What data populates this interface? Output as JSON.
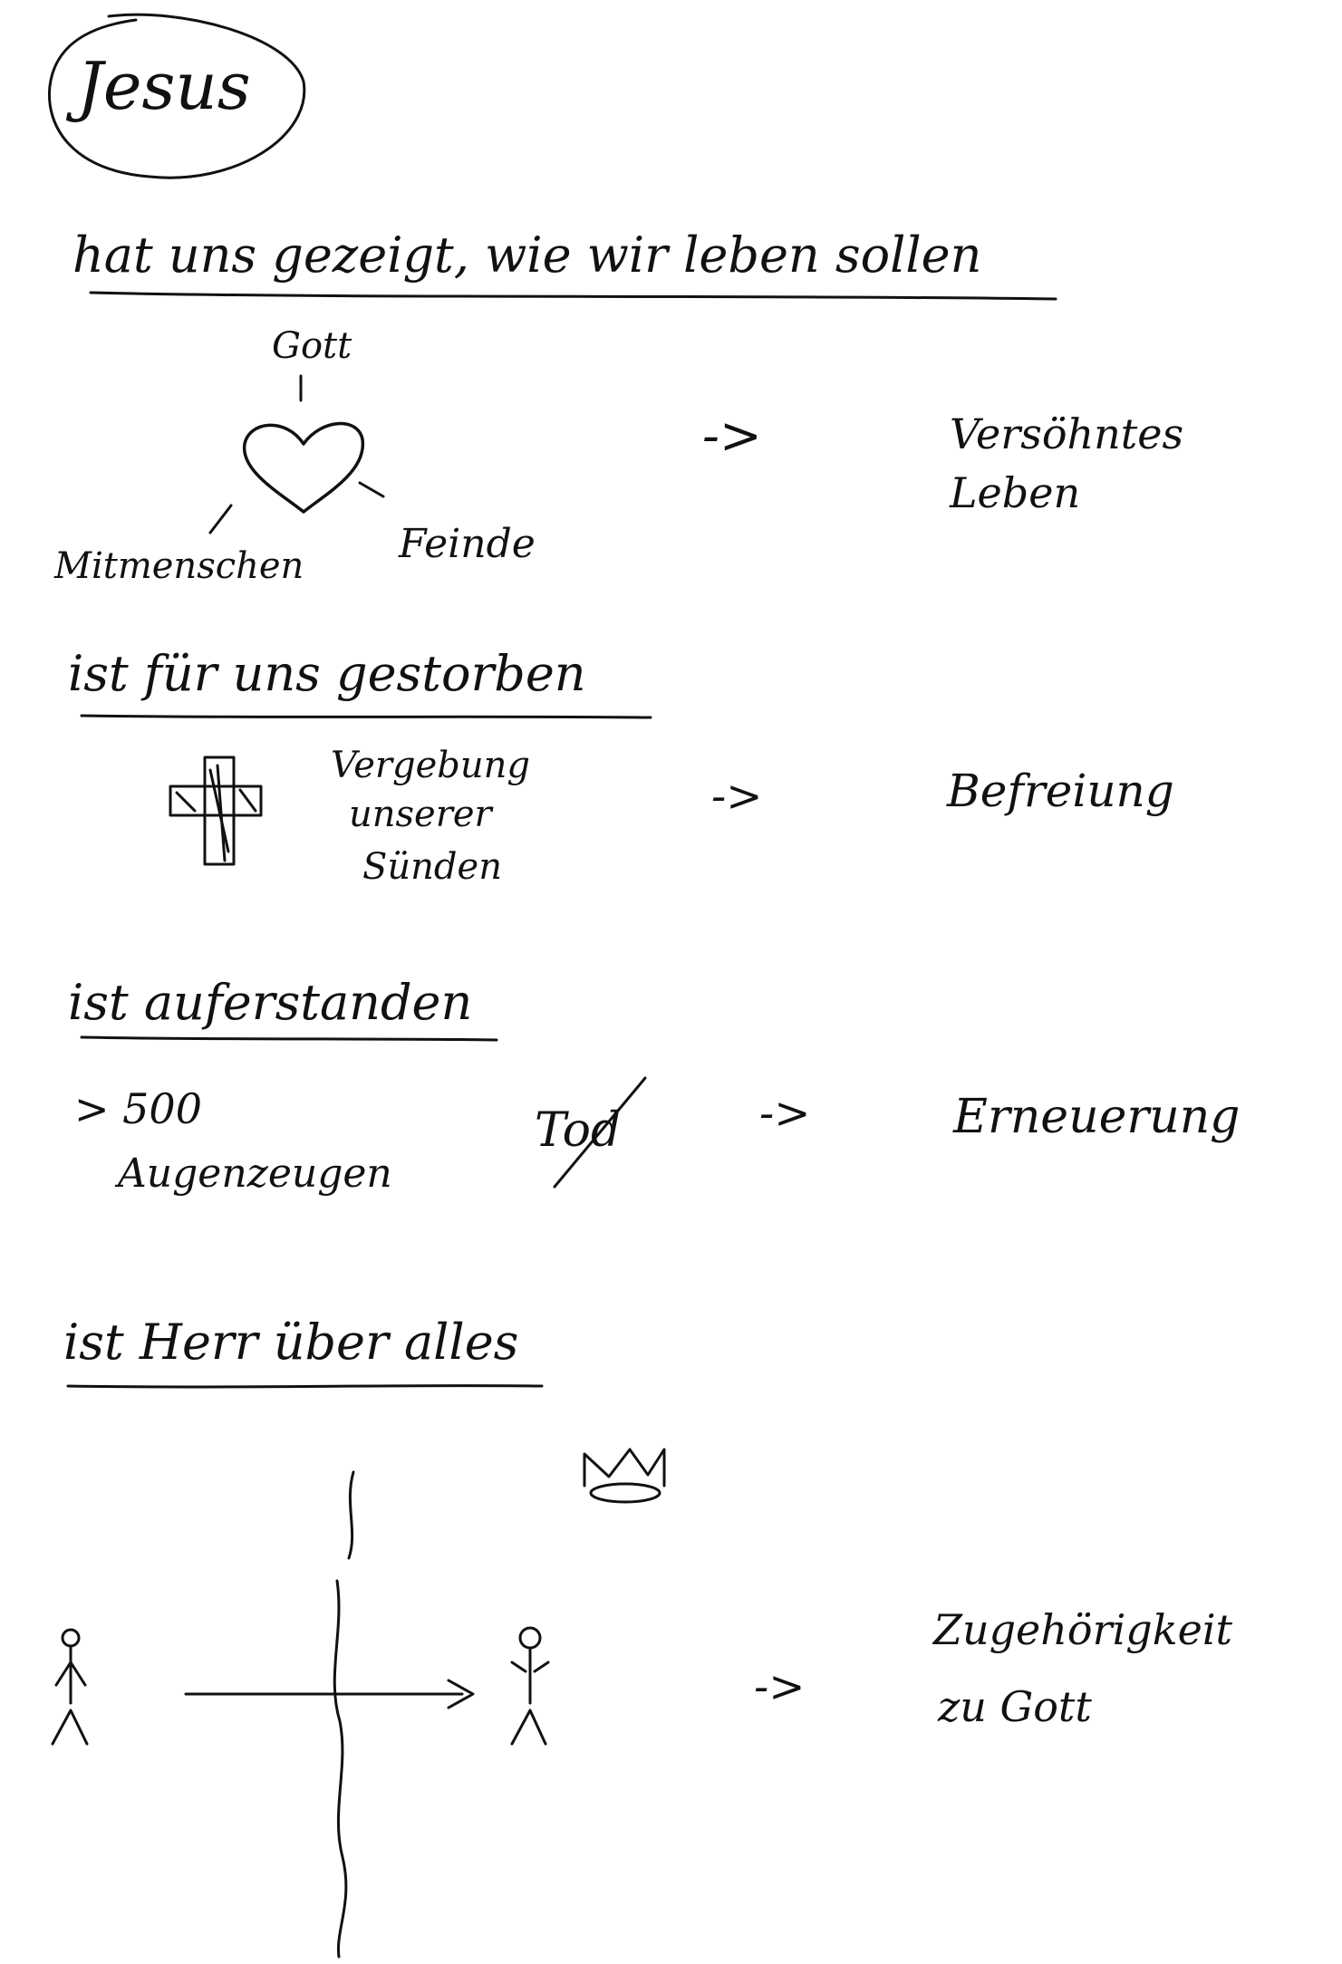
{
  "title": "Jesus",
  "sections": [
    {
      "heading": "hat uns gezeigt, wie wir leben sollen",
      "labels": [
        "Gott",
        "Mitmenschen",
        "Feinde"
      ],
      "arrow": "->",
      "result": [
        "Versöhntes",
        "Leben"
      ]
    },
    {
      "heading": "ist für uns gestorben",
      "labels": [
        "Vergebung",
        "unserer",
        "Sünden"
      ],
      "arrow": "->",
      "result": [
        "Befreiung"
      ]
    },
    {
      "heading": "ist auferstanden",
      "labels": [
        "> 500",
        "Augenzeugen",
        "Tod"
      ],
      "arrow": "->",
      "result": [
        "Erneuerung"
      ]
    },
    {
      "heading": "ist Herr über alles",
      "labels": [],
      "arrow": "->",
      "result": [
        "Zugehörigkeit",
        "zu Gott"
      ]
    }
  ],
  "icons": [
    "circle-outline",
    "heart-icon",
    "cross-icon",
    "crown-icon",
    "stick-figure-icon",
    "axis-cross-icon",
    "arrow-icon"
  ],
  "ink_color": "#111111",
  "paper_color": "#ffffff"
}
